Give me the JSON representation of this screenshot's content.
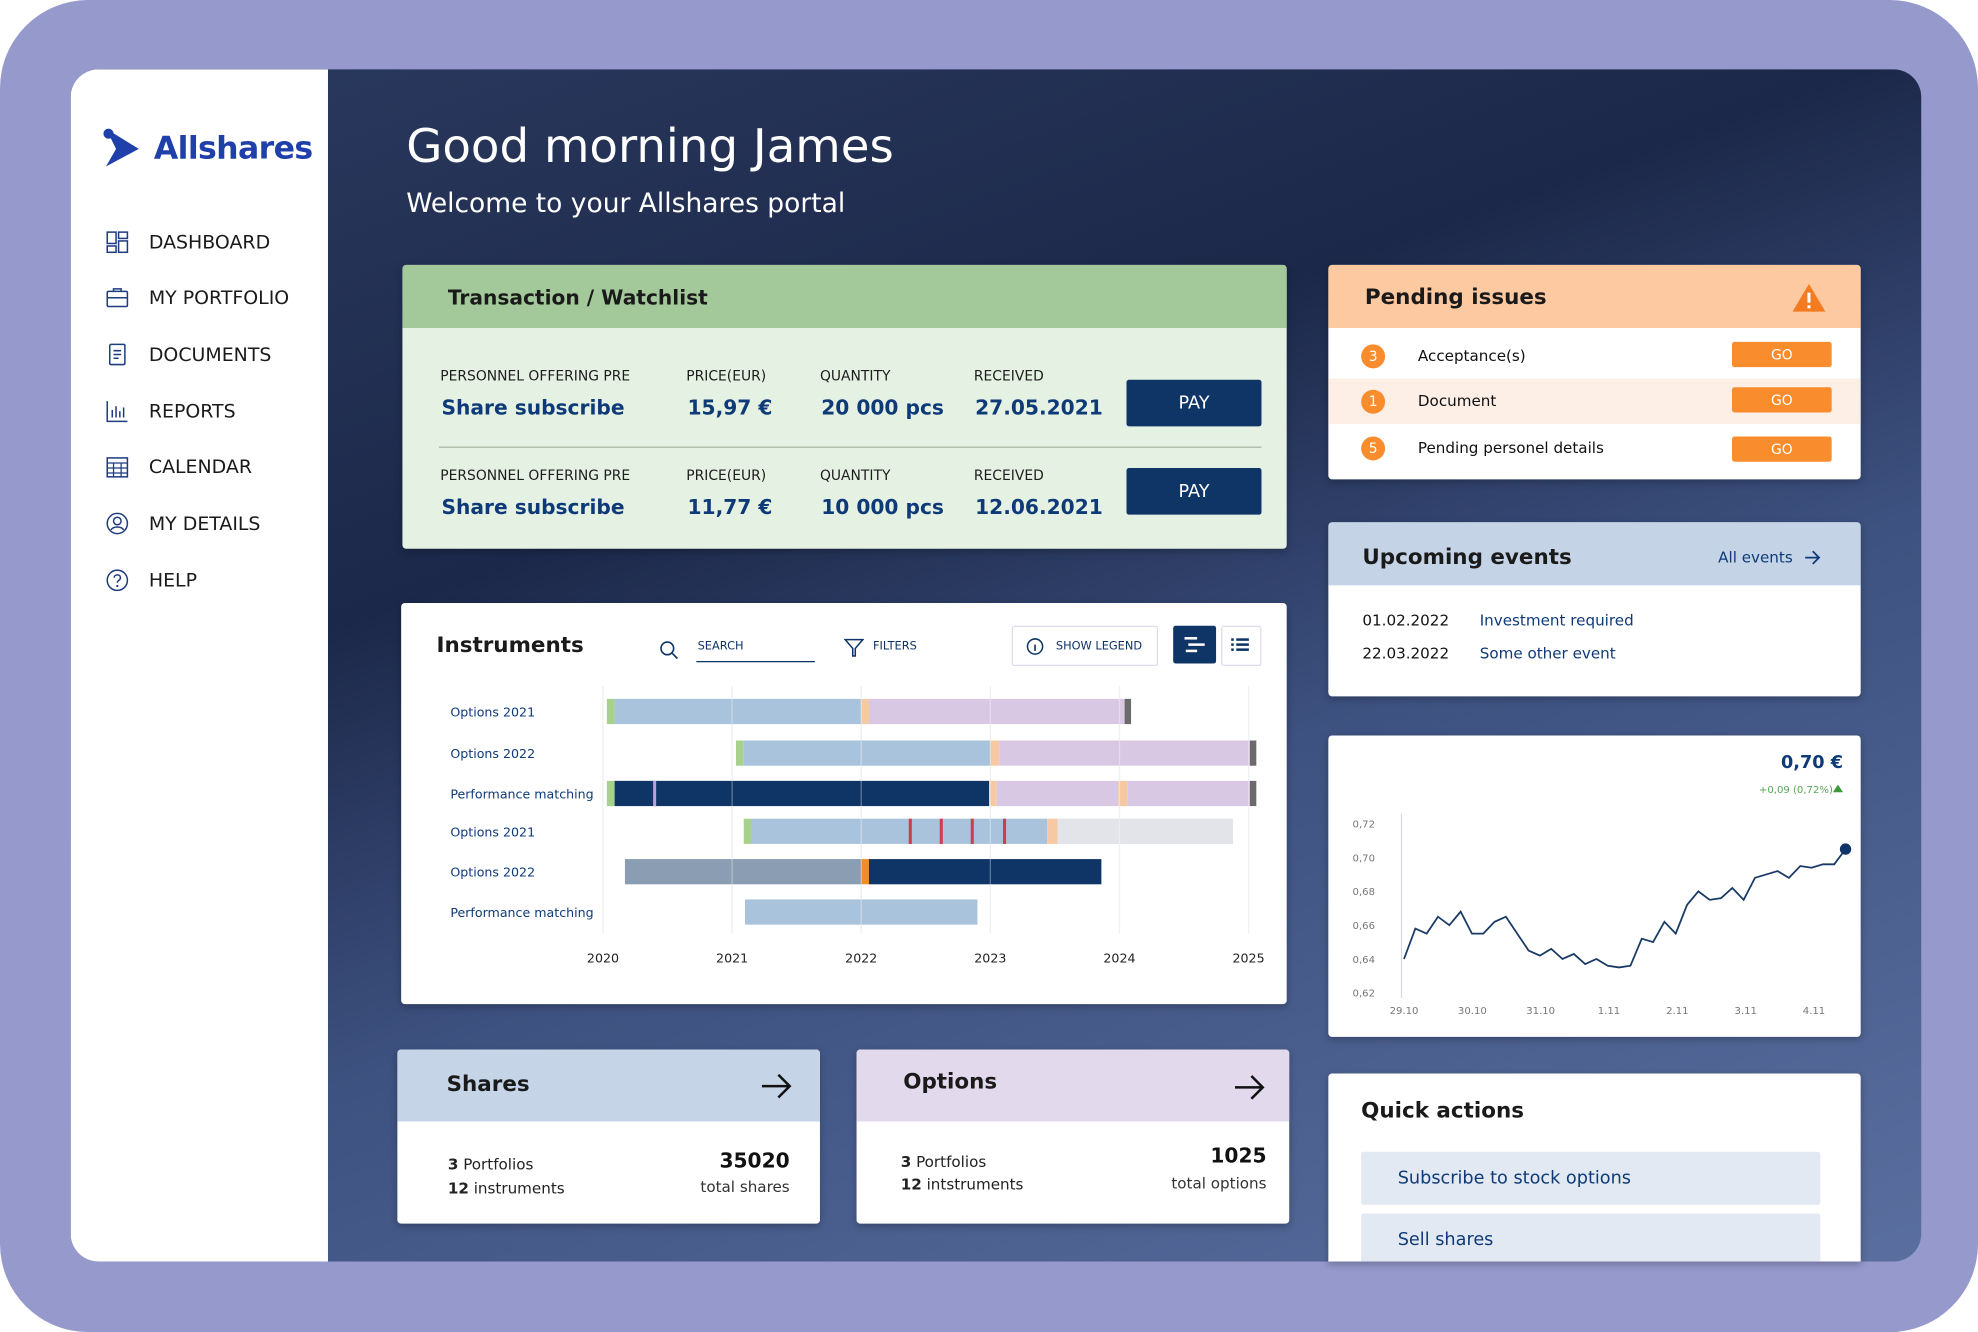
{
  "brand": "Allshares",
  "nav": [
    "DASHBOARD",
    "MY PORTFOLIO",
    "DOCUMENTS",
    "REPORTS",
    "CALENDAR",
    "MY DETAILS",
    "HELP"
  ],
  "header": {
    "title": "Good morning James",
    "subtitle": "Welcome to your Allshares portal"
  },
  "transactions": {
    "title": "Transaction / Watchlist",
    "rows": [
      {
        "offering_label": "PERSONNEL OFFERING PRE",
        "offering": "Share subscribe",
        "price_label": "PRICE(EUR)",
        "price": "15,97 €",
        "quantity_label": "QUANTITY",
        "quantity": "20 000 pcs",
        "received_label": "RECEIVED",
        "received": "27.05.2021",
        "action": "PAY"
      },
      {
        "offering_label": "PERSONNEL OFFERING PRE",
        "offering": "Share subscribe",
        "price_label": "PRICE(EUR)",
        "price": "11,77 €",
        "quantity_label": "QUANTITY",
        "quantity": "10 000 pcs",
        "received_label": "RECEIVED",
        "received": "12.06.2021",
        "action": "PAY"
      }
    ]
  },
  "instruments": {
    "title": "Instruments",
    "search": "SEARCH",
    "filters": "FILTERS",
    "legend_button": "SHOW LEGEND",
    "chart_data": {
      "type": "gantt",
      "categories": [
        "Options 2021",
        "Options 2022",
        "Performance matching",
        "Options 2021",
        "Options 2022",
        "Performance matching"
      ],
      "xlim": [
        2020,
        2025.1
      ],
      "xticks": [
        2020,
        2021,
        2022,
        2023,
        2024,
        2025
      ],
      "grid": true,
      "rows": [
        {
          "segments": [
            {
              "start": 2020.03,
              "end": 2020.09,
              "color": "#a9d18e"
            },
            {
              "start": 2020.09,
              "end": 2022.0,
              "color": "#a9c3dc"
            },
            {
              "start": 2022.0,
              "end": 2022.06,
              "color": "#f7c9a3"
            },
            {
              "start": 2022.06,
              "end": 2024.04,
              "color": "#d9c8e3"
            },
            {
              "start": 2024.04,
              "end": 2024.09,
              "color": "#6b6b6b"
            }
          ],
          "markers": []
        },
        {
          "segments": [
            {
              "start": 2021.03,
              "end": 2021.09,
              "color": "#a9d18e"
            },
            {
              "start": 2021.09,
              "end": 2023.0,
              "color": "#a9c3dc"
            },
            {
              "start": 2023.0,
              "end": 2023.07,
              "color": "#f7c9a3"
            },
            {
              "start": 2023.07,
              "end": 2025.01,
              "color": "#d9c8e3"
            },
            {
              "start": 2025.01,
              "end": 2025.06,
              "color": "#6b6b6b"
            }
          ],
          "markers": []
        },
        {
          "segments": [
            {
              "start": 2020.03,
              "end": 2020.09,
              "color": "#a9d18e"
            },
            {
              "start": 2020.09,
              "end": 2022.99,
              "color": "#0f3466"
            },
            {
              "start": 2022.99,
              "end": 2023.05,
              "color": "#f7c9a3"
            },
            {
              "start": 2023.05,
              "end": 2023.99,
              "color": "#d9c8e3"
            },
            {
              "start": 2023.99,
              "end": 2024.06,
              "color": "#f7c9a3"
            },
            {
              "start": 2024.06,
              "end": 2025.01,
              "color": "#d9c8e3"
            },
            {
              "start": 2025.01,
              "end": 2025.06,
              "color": "#6b6b6b"
            }
          ],
          "markers": [
            {
              "at": 2020.4,
              "color": "#b9a3d6"
            }
          ]
        },
        {
          "segments": [
            {
              "start": 2021.09,
              "end": 2021.15,
              "color": "#a9d18e"
            },
            {
              "start": 2021.15,
              "end": 2023.44,
              "color": "#a9c3dc"
            },
            {
              "start": 2023.44,
              "end": 2023.52,
              "color": "#f7c9a3"
            },
            {
              "start": 2023.52,
              "end": 2024.88,
              "color": "#e3e3ea"
            }
          ],
          "markers": [
            {
              "at": 2022.38,
              "color": "#d13b4b"
            },
            {
              "at": 2022.62,
              "color": "#d13b4b"
            },
            {
              "at": 2022.86,
              "color": "#d13b4b"
            },
            {
              "at": 2023.11,
              "color": "#d13b4b"
            }
          ]
        },
        {
          "segments": [
            {
              "start": 2020.17,
              "end": 2022.0,
              "color": "#8a9db3"
            },
            {
              "start": 2022.0,
              "end": 2022.06,
              "color": "#f08c2a"
            },
            {
              "start": 2022.06,
              "end": 2023.86,
              "color": "#0f3466"
            }
          ],
          "markers": []
        },
        {
          "segments": [
            {
              "start": 2021.1,
              "end": 2022.9,
              "color": "#a9c3dc"
            }
          ],
          "markers": []
        }
      ]
    }
  },
  "pending": {
    "title": "Pending issues",
    "items": [
      {
        "count": 3,
        "label": "Acceptance(s)",
        "action": "GO"
      },
      {
        "count": 1,
        "label": "Document",
        "action": "GO"
      },
      {
        "count": 5,
        "label": "Pending personel details",
        "action": "GO"
      }
    ]
  },
  "events": {
    "title": "Upcoming events",
    "link": "All events",
    "items": [
      {
        "date": "01.02.2022",
        "name": "Investment required"
      },
      {
        "date": "22.03.2022",
        "name": "Some other event"
      }
    ]
  },
  "price_chart": {
    "price": "0,70 €",
    "change": "+0,09 (0,72%)",
    "chart_data": {
      "type": "line",
      "color": "#1a3a66",
      "x_labels": [
        "29.10",
        "30.10",
        "31.10",
        "1.11",
        "2.11",
        "3.11",
        "4.11"
      ],
      "values": [
        0.64,
        0.658,
        0.655,
        0.665,
        0.66,
        0.668,
        0.655,
        0.655,
        0.662,
        0.665,
        0.655,
        0.645,
        0.642,
        0.646,
        0.64,
        0.643,
        0.637,
        0.64,
        0.636,
        0.635,
        0.636,
        0.652,
        0.65,
        0.662,
        0.655,
        0.672,
        0.68,
        0.675,
        0.676,
        0.682,
        0.675,
        0.688,
        0.69,
        0.692,
        0.688,
        0.695,
        0.694,
        0.696,
        0.696,
        0.705
      ],
      "ylim": [
        0.62,
        0.72
      ],
      "yticks": [
        {
          "value": 0.72,
          "label": "0,72"
        },
        {
          "value": 0.7,
          "label": "0,70"
        },
        {
          "value": 0.68,
          "label": "0,68"
        },
        {
          "value": 0.66,
          "label": "0,66"
        },
        {
          "value": 0.64,
          "label": "0,64"
        },
        {
          "value": 0.62,
          "label": "0,62"
        }
      ]
    }
  },
  "shares": {
    "title": "Shares",
    "portfolios_count": 3,
    "portfolios_label": "Portfolios",
    "instruments_count": 12,
    "instruments_label": "instruments",
    "total": 35020,
    "total_label": "total shares"
  },
  "options": {
    "title": "Options",
    "portfolios_count": 3,
    "portfolios_label": "Portfolios",
    "instruments_count": 12,
    "instruments_label": "intstruments",
    "total": 1025,
    "total_label": "total options"
  },
  "quick_actions": {
    "title": "Quick actions",
    "actions": [
      "Subscribe to stock options",
      "Sell shares"
    ]
  }
}
